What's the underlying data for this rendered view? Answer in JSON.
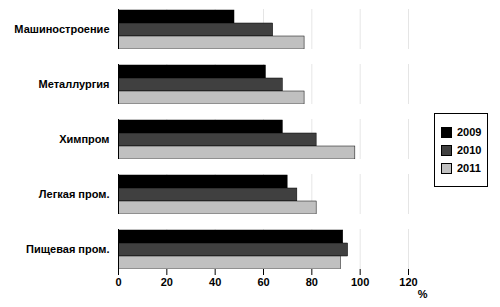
{
  "chart_data": {
    "type": "bar",
    "orientation": "horizontal",
    "categories": [
      "Машиностроение",
      "Металлургия",
      "Химпром",
      "Легкая пром.",
      "Пищевая пром."
    ],
    "series": [
      {
        "name": "2009",
        "color": "#000000",
        "values": [
          48,
          61,
          68,
          70,
          93
        ]
      },
      {
        "name": "2010",
        "color": "#404040",
        "values": [
          64,
          68,
          82,
          74,
          95
        ]
      },
      {
        "name": "2011",
        "color": "#c0c0c0",
        "values": [
          77,
          77,
          98,
          82,
          92
        ]
      }
    ],
    "xlabel": "%",
    "xlim": [
      0,
      120
    ],
    "xticks": [
      0,
      20,
      40,
      60,
      80,
      100,
      120
    ],
    "grid": true,
    "legend": "right"
  }
}
